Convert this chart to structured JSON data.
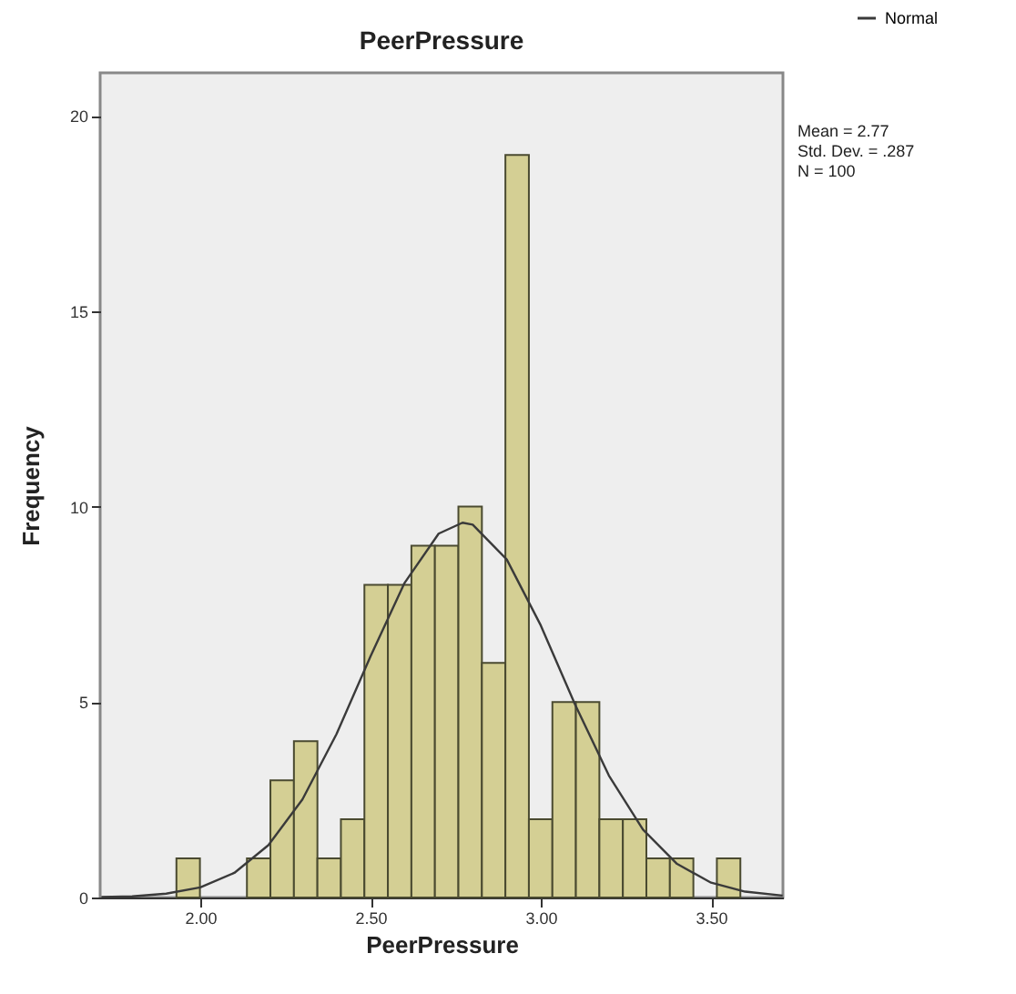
{
  "chart_data": {
    "type": "histogram",
    "title": "PeerPressure",
    "xlabel": "PeerPressure",
    "ylabel": "Frequency",
    "bins": [
      1.93,
      1.999,
      2.068,
      2.137,
      2.206,
      2.275,
      2.344,
      2.413,
      2.482,
      2.551,
      2.62,
      2.689,
      2.758,
      2.827,
      2.896,
      2.965,
      3.034,
      3.103,
      3.172,
      3.241,
      3.31,
      3.379,
      3.448,
      3.517,
      3.586
    ],
    "values": [
      1,
      0,
      0,
      1,
      3,
      4,
      1,
      2,
      8,
      8,
      9,
      9,
      10,
      6,
      19,
      2,
      5,
      5,
      2,
      2,
      1,
      1,
      0,
      1
    ],
    "color": "#d4cf94",
    "series": [
      {
        "name": "Normal",
        "type": "line",
        "color": "#3a3a3a",
        "x": [
          1.71,
          1.8,
          1.9,
          2.0,
          2.1,
          2.2,
          2.3,
          2.4,
          2.5,
          2.6,
          2.7,
          2.77,
          2.8,
          2.9,
          3.0,
          3.1,
          3.2,
          3.3,
          3.4,
          3.5,
          3.6,
          3.71
        ],
        "values": [
          0.01,
          0.03,
          0.1,
          0.26,
          0.63,
          1.34,
          2.51,
          4.18,
          6.17,
          8.05,
          9.31,
          9.59,
          9.54,
          8.65,
          6.96,
          4.95,
          3.12,
          1.74,
          0.86,
          0.38,
          0.15,
          0.05
        ]
      }
    ],
    "xlim": [
      1.706,
      3.711
    ],
    "ylim": [
      0,
      21.1
    ],
    "xticks": [
      {
        "value": 2.0,
        "label": "2.00"
      },
      {
        "value": 2.5,
        "label": "2.50"
      },
      {
        "value": 3.0,
        "label": "3.00"
      },
      {
        "value": 3.5,
        "label": "3.50"
      }
    ],
    "yticks": [
      0,
      5,
      10,
      15,
      20
    ],
    "legend": "top right",
    "annotations": [
      "Mean = 2.77",
      "Std. Dev. = .287",
      "N = 100"
    ]
  }
}
